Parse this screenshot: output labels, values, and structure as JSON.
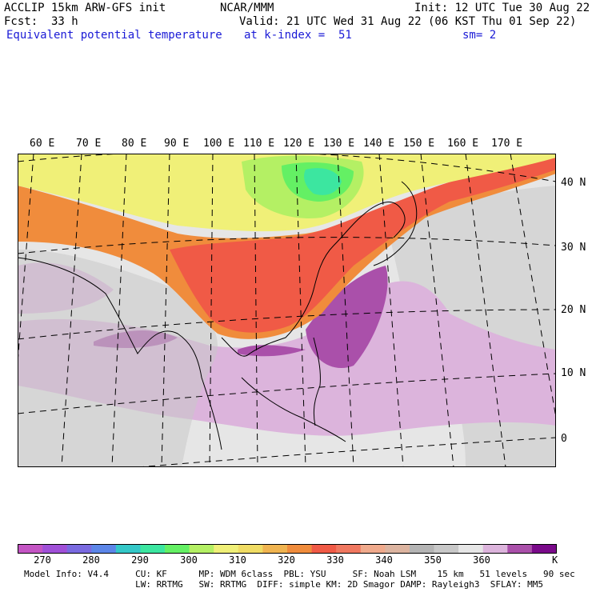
{
  "header": {
    "model": "ACCLIP 15km ARW-GFS init",
    "org": "NCAR/MMM",
    "init": "Init: 12 UTC Tue 30 Aug 22",
    "fcst_label": "Fcst:",
    "fcst_value": "33 h",
    "valid": "Valid: 21 UTC Wed 31 Aug 22 (06 KST Thu 01 Sep 22)",
    "field": "Equivalent potential temperature",
    "level": "at k-index =  51",
    "smoothing": "sm= 2"
  },
  "map": {
    "lon_labels": [
      "60 E",
      "70 E",
      "80 E",
      "90 E",
      "100 E",
      "110 E",
      "120 E",
      "130 E",
      "140 E",
      "150 E",
      "160 E",
      "170 E"
    ],
    "lat_labels": [
      "40 N",
      "30 N",
      "20 N",
      "10 N",
      "0"
    ]
  },
  "colorbar": {
    "colors": [
      "#c455c4",
      "#a050d8",
      "#7a6ae0",
      "#5c86e8",
      "#34c8c8",
      "#3ce6a0",
      "#64f064",
      "#b4f064",
      "#f0f078",
      "#f0dc64",
      "#f0b450",
      "#f08c3c",
      "#f05a46",
      "#f07860",
      "#f0aa8c",
      "#dcb4a0",
      "#b4b4b4",
      "#c8c8c8",
      "#e6e6e6",
      "#dcb4dc",
      "#aa50aa",
      "#7a0a8a"
    ],
    "ticks": [
      "270",
      "280",
      "290",
      "300",
      "310",
      "320",
      "330",
      "340",
      "350",
      "360"
    ],
    "unit": "K"
  },
  "footer": {
    "line1": "Model Info: V4.4     CU: KF      MP: WDM 6class  PBL: YSU     SF: Noah LSM    15 km   51 levels   90 sec",
    "line2": "                     LW: RRTMG   SW: RRTMG  DIFF: simple KM: 2D Smagor DAMP: Rayleigh3  SFLAY: MM5"
  }
}
